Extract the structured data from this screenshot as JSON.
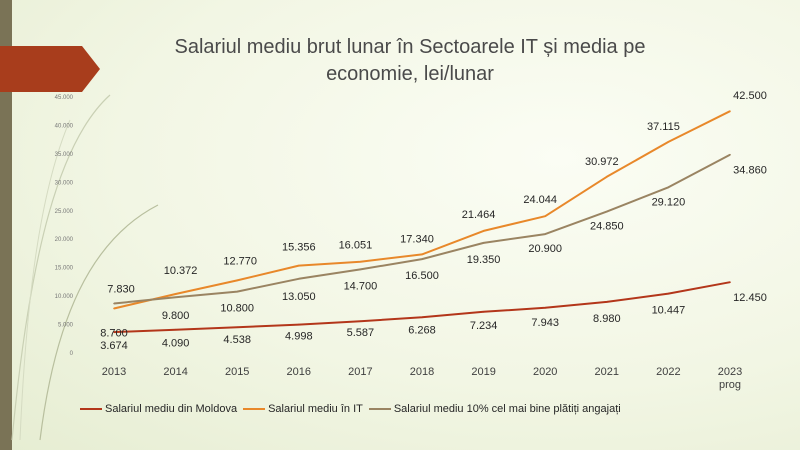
{
  "slide": {
    "title_line1": "Salariul mediu brut lunar în Sectoarele IT și media pe",
    "title_line2": "economie, lei/lunar"
  },
  "chart_data": {
    "type": "line",
    "title": "Salariul mediu brut lunar în Sectoarele IT și media pe economie, lei/lunar",
    "categories": [
      "2013",
      "2014",
      "2015",
      "2016",
      "2017",
      "2018",
      "2019",
      "2020",
      "2021",
      "2022",
      "2023 prog"
    ],
    "category_lines": [
      [
        "2013"
      ],
      [
        "2014"
      ],
      [
        "2015"
      ],
      [
        "2016"
      ],
      [
        "2017"
      ],
      [
        "2018"
      ],
      [
        "2019"
      ],
      [
        "2020"
      ],
      [
        "2021"
      ],
      [
        "2022"
      ],
      [
        "2023",
        "prog"
      ]
    ],
    "y_ticks": [
      "0",
      "5.000",
      "10.000",
      "15.000",
      "20.000",
      "25.000",
      "30.000",
      "35.000",
      "40.000",
      "45.000"
    ],
    "ylim": [
      0,
      45000
    ],
    "grid": false,
    "legend_position": "bottom",
    "series": [
      {
        "name": "Salariul mediu din Moldova",
        "color": "#b3361a",
        "values": [
          3674,
          4090,
          4538,
          4998,
          5587,
          6268,
          7234,
          7943,
          8980,
          10447,
          12450
        ],
        "labels": [
          "3.674",
          "4.090",
          "4.538",
          "4.998",
          "5.587",
          "6.268",
          "7.234",
          "7.943",
          "8.980",
          "10.447",
          "12.450"
        ]
      },
      {
        "name": "Salariul mediu în IT",
        "color": "#e8882a",
        "values": [
          7830,
          10372,
          12770,
          15356,
          16051,
          17340,
          21464,
          24044,
          30972,
          37115,
          42500
        ],
        "labels": [
          "7.830",
          "10.372",
          "12.770",
          "15.356",
          "16.051",
          "17.340",
          "21.464",
          "24.044",
          "30.972",
          "37.115",
          "42.500"
        ]
      },
      {
        "name": "Salariul mediu 10% cel mai bine plătiți angajați",
        "color": "#9a8462",
        "values": [
          8700,
          9800,
          10800,
          13050,
          14700,
          16500,
          19350,
          20900,
          24850,
          29120,
          34860
        ],
        "labels": [
          "8.700",
          "9.800",
          "10.800",
          "13.050",
          "14.700",
          "16.500",
          "19.350",
          "20.900",
          "24.850",
          "29.120",
          "34.860"
        ]
      }
    ]
  }
}
